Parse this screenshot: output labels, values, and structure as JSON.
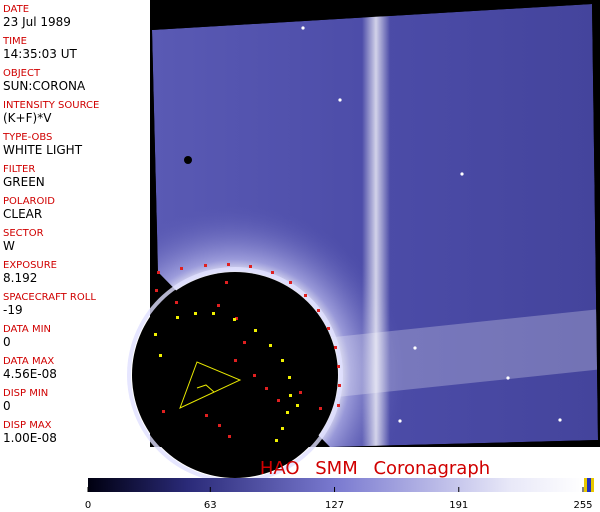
{
  "sidebar": {
    "fields": [
      {
        "label": "DATE",
        "value": "23 Jul 1989"
      },
      {
        "label": "TIME",
        "value": "14:35:03 UT"
      },
      {
        "label": "OBJECT",
        "value": "SUN:CORONA"
      },
      {
        "label": "INTENSITY SOURCE",
        "value": "(K+F)*V"
      },
      {
        "label": "TYPE-OBS",
        "value": "WHITE LIGHT"
      },
      {
        "label": "FILTER",
        "value": "GREEN"
      },
      {
        "label": "POLAROID",
        "value": "CLEAR"
      },
      {
        "label": "SECTOR",
        "value": "W"
      },
      {
        "label": "EXPOSURE",
        "value": "8.192"
      },
      {
        "label": "SPACECRAFT ROLL",
        "value": "-19"
      },
      {
        "label": "DATA MIN",
        "value": "0"
      },
      {
        "label": "DATA MAX",
        "value": "4.56E-08"
      },
      {
        "label": "DISP MIN",
        "value": "0"
      },
      {
        "label": "DISP MAX",
        "value": "1.00E-08"
      }
    ]
  },
  "footer": {
    "title": "HAO SMM Coronagraph"
  },
  "colorbar": {
    "lim": [
      0,
      255
    ],
    "ticks": [
      0,
      63,
      127,
      191,
      255
    ]
  }
}
